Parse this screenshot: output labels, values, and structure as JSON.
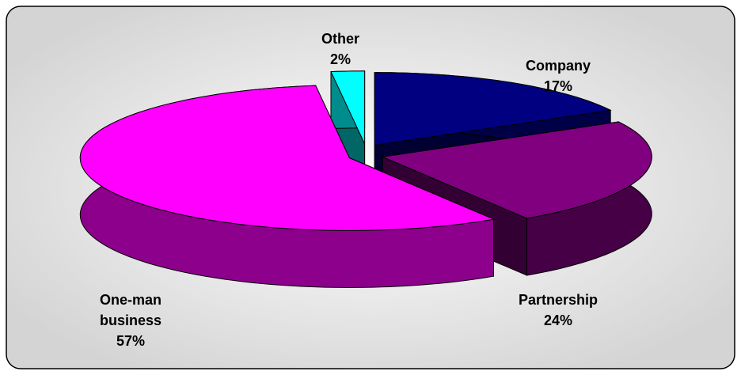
{
  "chart_data": {
    "type": "pie",
    "categories": [
      "Company",
      "Partnership",
      "One-man business",
      "Other"
    ],
    "values": [
      17,
      24,
      57,
      2
    ],
    "value_labels": [
      "17%",
      "24%",
      "57%",
      "2%"
    ],
    "colors": [
      "#000080",
      "#800080",
      "#FF00FF",
      "#00FFFF"
    ]
  }
}
